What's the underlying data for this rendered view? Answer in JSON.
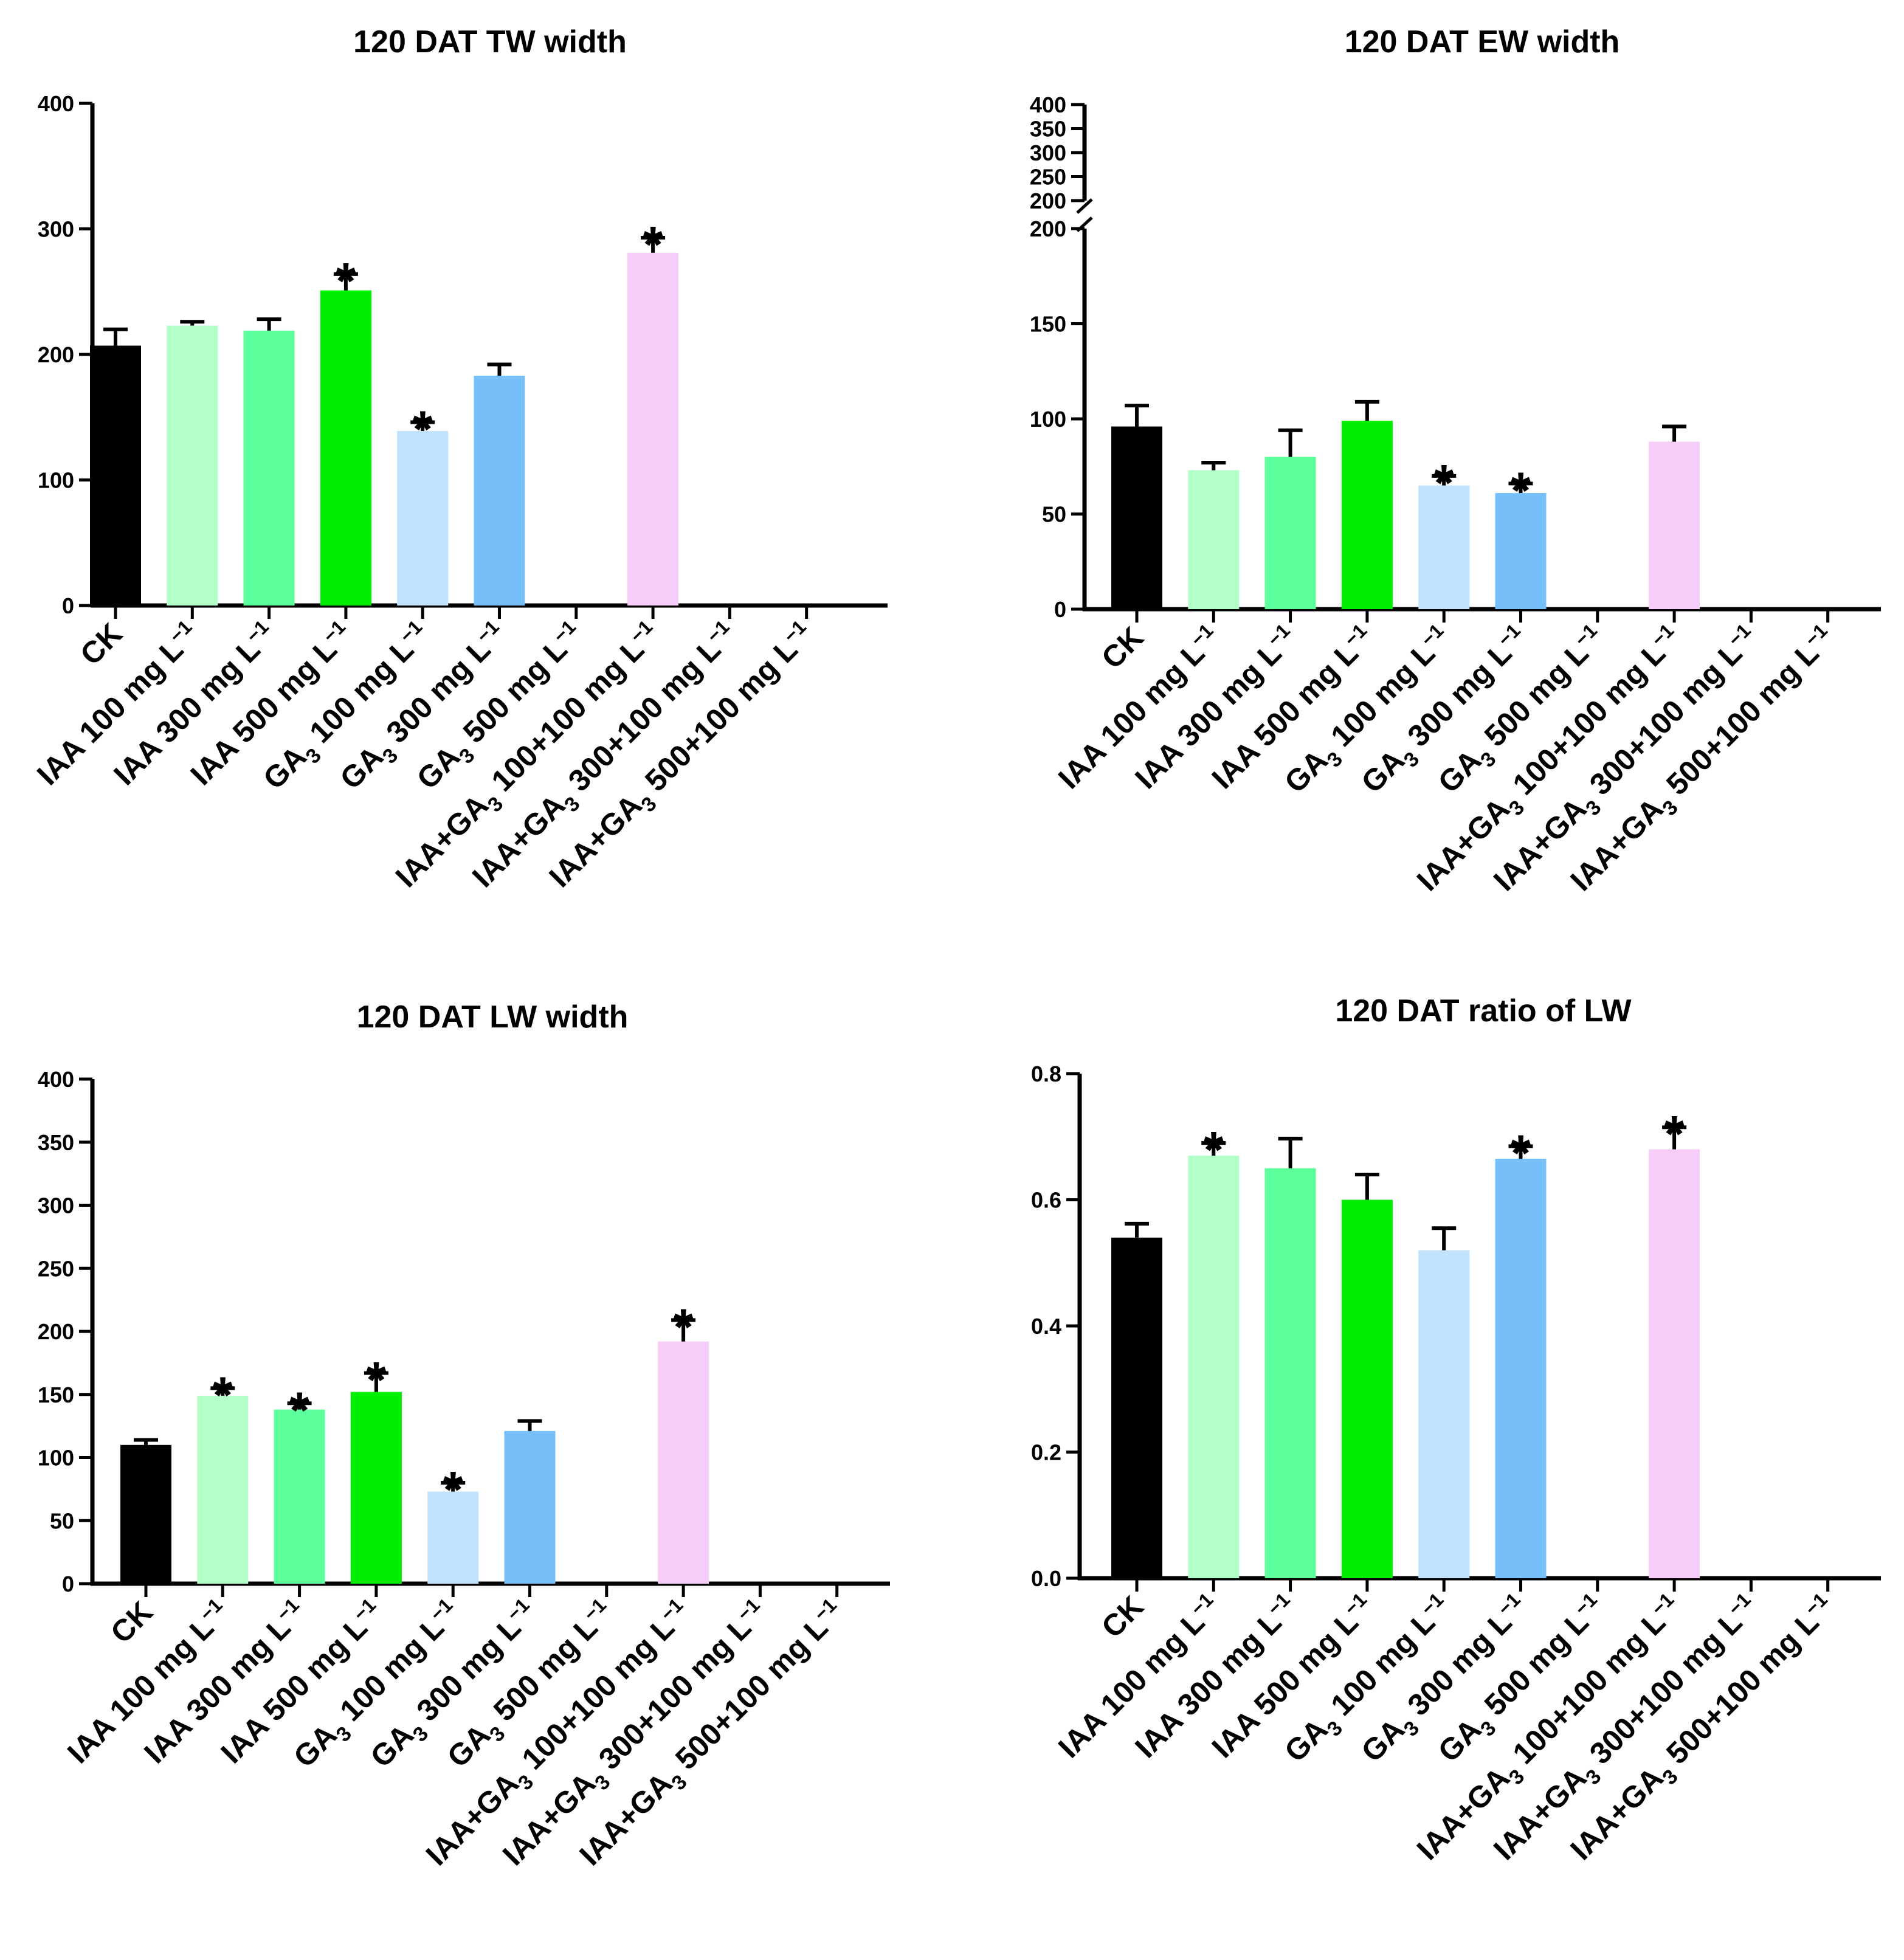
{
  "categories": [
    {
      "label": "CK",
      "sub": "",
      "suffix": ""
    },
    {
      "label": "IAA 100 mg L",
      "sub": "",
      "suffix": "−1"
    },
    {
      "label": "IAA 300 mg L",
      "sub": "",
      "suffix": "−1"
    },
    {
      "label": "IAA 500 mg L",
      "sub": "",
      "suffix": "−1"
    },
    {
      "label": "GA",
      "sub": "3",
      "rest": " 100 mg L",
      "suffix": "−1"
    },
    {
      "label": "GA",
      "sub": "3",
      "rest": " 300 mg L",
      "suffix": "−1"
    },
    {
      "label": "GA",
      "sub": "3",
      "rest": " 500 mg L",
      "suffix": "−1"
    },
    {
      "label": "IAA+GA",
      "sub": "3",
      "rest": " 100+100 mg L",
      "suffix": "−1"
    },
    {
      "label": "IAA+GA",
      "sub": "3",
      "rest": " 300+100 mg L",
      "suffix": "−1"
    },
    {
      "label": "IAA+GA",
      "sub": "3",
      "rest": " 500+100 mg L",
      "suffix": "−1"
    }
  ],
  "colors": [
    "#000000",
    "#b3ffc8",
    "#5cff9a",
    "#00ee00",
    "#c2e1fa",
    "#77bff9",
    "#ffffff",
    "#f6cdf8",
    "#ffffff",
    "#ffffff"
  ],
  "significance_marker": "*",
  "chart_data": [
    {
      "type": "bar",
      "title": "120 DAT TW width",
      "ylim": [
        0,
        400
      ],
      "yticks": [
        "0",
        "100",
        "200",
        "300",
        "400"
      ],
      "yticks_values": [
        0,
        100,
        200,
        300,
        400
      ],
      "values": [
        207,
        223,
        219,
        251,
        139,
        183,
        null,
        281,
        null,
        null
      ],
      "errors": [
        13,
        3,
        9,
        13,
        7,
        9,
        null,
        12,
        null,
        null
      ],
      "significant": [
        false,
        false,
        false,
        true,
        true,
        false,
        false,
        true,
        false,
        false
      ],
      "xlabel": "",
      "ylabel": ""
    },
    {
      "type": "bar",
      "title": "120 DAT EW width",
      "ylim": [
        0,
        200
      ],
      "axis_break": true,
      "upper_ylim": [
        200,
        400
      ],
      "yticks": [
        "0",
        "50",
        "100",
        "150",
        "200"
      ],
      "yticks_values": [
        0,
        50,
        100,
        150,
        200
      ],
      "upper_yticks": [
        "200",
        "250",
        "300",
        "350",
        "400"
      ],
      "upper_yticks_values": [
        200,
        250,
        300,
        350,
        400
      ],
      "values": [
        96,
        73,
        80,
        99,
        65,
        61,
        null,
        88,
        null,
        null
      ],
      "errors": [
        11,
        4,
        14,
        10,
        5,
        5,
        null,
        8,
        null,
        null
      ],
      "significant": [
        false,
        false,
        false,
        false,
        true,
        true,
        false,
        false,
        false,
        false
      ],
      "xlabel": "",
      "ylabel": ""
    },
    {
      "type": "bar",
      "title": "120 DAT LW width",
      "ylim": [
        0,
        400
      ],
      "yticks": [
        "0",
        "50",
        "100",
        "150",
        "200",
        "250",
        "300",
        "350",
        "400"
      ],
      "yticks_values": [
        0,
        50,
        100,
        150,
        200,
        250,
        300,
        350,
        400
      ],
      "values": [
        110,
        149,
        138,
        152,
        73,
        121,
        null,
        192,
        null,
        null
      ],
      "errors": [
        4,
        6,
        5,
        15,
        7,
        8,
        null,
        17,
        null,
        null
      ],
      "significant": [
        false,
        true,
        true,
        true,
        true,
        false,
        false,
        true,
        false,
        false
      ],
      "xlabel": "",
      "ylabel": ""
    },
    {
      "type": "bar",
      "title": "120 DAT ratio of LW",
      "ylim": [
        0,
        0.8
      ],
      "yticks": [
        "0.0",
        "0.2",
        "0.4",
        "0.6",
        "0.8"
      ],
      "yticks_values": [
        0,
        0.2,
        0.4,
        0.6,
        0.8
      ],
      "values": [
        0.54,
        0.67,
        0.65,
        0.6,
        0.52,
        0.665,
        null,
        0.68,
        null,
        null
      ],
      "errors": [
        0.022,
        0.02,
        0.047,
        0.04,
        0.035,
        0.02,
        null,
        0.035,
        null,
        null
      ],
      "significant": [
        false,
        true,
        false,
        false,
        false,
        true,
        false,
        true,
        false,
        false
      ],
      "xlabel": "",
      "ylabel": ""
    }
  ]
}
